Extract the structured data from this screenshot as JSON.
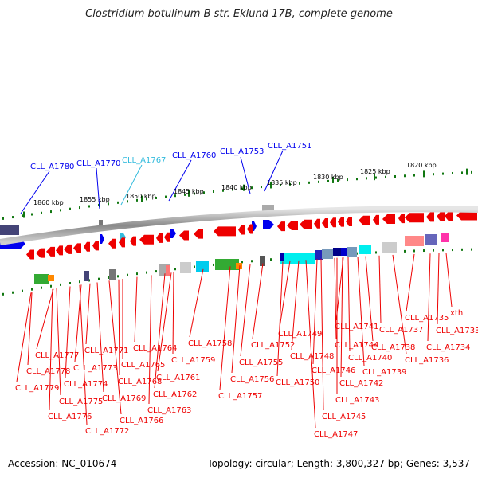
{
  "title": "Clostridium botulinum B str. Eklund 17B, complete genome",
  "footer": {
    "accession": "Accession: NC_010674",
    "summary": "Topology: circular; Length: 3,800,327 bp; Genes: 3,537"
  },
  "colors": {
    "forward_gene": "#0000ee",
    "reverse_gene": "#ee0000",
    "highlight_label": "#33bbdd",
    "backbone": "#888888",
    "scale_ticks": "#117711"
  },
  "scale_labels": [
    "1860 kbp",
    "1855 kbp",
    "1850 kbp",
    "1845 kbp",
    "1840 kbp",
    "1835 kbp",
    "1830 kbp",
    "1825 kbp",
    "1820 kbp"
  ],
  "forward_labels": [
    "CLL_A1780",
    "CLL_A1770",
    "CLL_A1767",
    "CLL_A1760",
    "CLL_A1753",
    "CLL_A1751"
  ],
  "reverse_labels": [
    "CLL_A1777",
    "CLL_A1778",
    "CLL_A1779",
    "CLL_A1776",
    "CLL_A1775",
    "CLL_A1774",
    "CLL_A1773",
    "CLL_A1771",
    "CLL_A1772",
    "CLL_A1769",
    "CLL_A1768",
    "CLL_A1766",
    "CLL_A1765",
    "CLL_A1764",
    "CLL_A1763",
    "CLL_A1762",
    "CLL_A1761",
    "CLL_A1759",
    "CLL_A1758",
    "CLL_A1757",
    "CLL_A1756",
    "CLL_A1755",
    "CLL_A1752",
    "CLL_A1750",
    "CLL_A1749",
    "CLL_A1748",
    "CLL_A1747",
    "CLL_A1746",
    "CLL_A1745",
    "CLL_A1744",
    "CLL_A1743",
    "CLL_A1742",
    "CLL_A1741",
    "CLL_A1740",
    "CLL_A1739",
    "CLL_A1738",
    "CLL_A1737",
    "CLL_A1736",
    "CLL_A1735",
    "CLL_A1734",
    "CLL_A1733",
    "xth"
  ]
}
